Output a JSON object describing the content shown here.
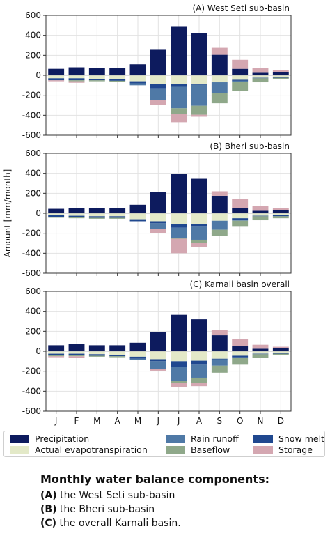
{
  "chart_data": [
    {
      "type": "bar",
      "title": "(A) West Seti sub-basin",
      "categories": [
        "J",
        "F",
        "M",
        "A",
        "M",
        "J",
        "J",
        "A",
        "S",
        "O",
        "N",
        "D"
      ],
      "ylim": [
        -600,
        600
      ],
      "yticks": [
        -600,
        -400,
        -200,
        0,
        200,
        400,
        600
      ],
      "grid": true,
      "series": [
        {
          "name": "Precipitation",
          "values": [
            65,
            80,
            70,
            70,
            110,
            255,
            485,
            420,
            205,
            65,
            25,
            30
          ]
        },
        {
          "name": "Actual evapotranspiration",
          "values": [
            -30,
            -30,
            -35,
            -40,
            -60,
            -85,
            -85,
            -85,
            -70,
            -45,
            -25,
            -20
          ]
        },
        {
          "name": "Rain runoff",
          "values": [
            0,
            0,
            0,
            0,
            -20,
            -120,
            -215,
            -210,
            -105,
            -10,
            0,
            0
          ]
        },
        {
          "name": "Snow melt",
          "values": [
            -20,
            -20,
            -15,
            -15,
            -20,
            -45,
            -30,
            -10,
            0,
            -10,
            -5,
            -5
          ]
        },
        {
          "name": "Baseflow",
          "values": [
            0,
            -10,
            -10,
            -10,
            0,
            0,
            -60,
            -90,
            -105,
            -90,
            -40,
            -15
          ]
        },
        {
          "name": "Storage",
          "values": [
            -10,
            -15,
            0,
            0,
            0,
            -45,
            -80,
            -20,
            70,
            90,
            45,
            20
          ]
        }
      ]
    },
    {
      "type": "bar",
      "title": "(B) Bheri sub-basin",
      "categories": [
        "J",
        "F",
        "M",
        "A",
        "M",
        "J",
        "J",
        "A",
        "S",
        "O",
        "N",
        "D"
      ],
      "ylim": [
        -600,
        600
      ],
      "yticks": [
        -600,
        -400,
        -200,
        0,
        200,
        400,
        600
      ],
      "grid": true,
      "series": [
        {
          "name": "Precipitation",
          "values": [
            45,
            55,
            50,
            50,
            85,
            210,
            395,
            345,
            175,
            55,
            25,
            30
          ]
        },
        {
          "name": "Actual evapotranspiration",
          "values": [
            -20,
            -25,
            -30,
            -30,
            -60,
            -80,
            -110,
            -110,
            -75,
            -50,
            -25,
            -20
          ]
        },
        {
          "name": "Rain runoff",
          "values": [
            0,
            0,
            0,
            0,
            0,
            -60,
            -100,
            -130,
            -90,
            -5,
            0,
            0
          ]
        },
        {
          "name": "Snow melt",
          "values": [
            -15,
            -15,
            -15,
            -15,
            -20,
            -20,
            -35,
            -25,
            0,
            -20,
            -5,
            -10
          ]
        },
        {
          "name": "Baseflow",
          "values": [
            -10,
            -10,
            -10,
            -10,
            0,
            0,
            -10,
            -30,
            -60,
            -60,
            -40,
            -20
          ]
        },
        {
          "name": "Storage",
          "values": [
            0,
            0,
            0,
            0,
            0,
            -40,
            -145,
            -45,
            45,
            85,
            50,
            20
          ]
        }
      ]
    },
    {
      "type": "bar",
      "title": "(C) Karnali basin overall",
      "categories": [
        "J",
        "F",
        "M",
        "A",
        "M",
        "J",
        "J",
        "A",
        "S",
        "O",
        "N",
        "D"
      ],
      "ylim": [
        -600,
        600
      ],
      "yticks": [
        -600,
        -400,
        -200,
        0,
        200,
        400,
        600
      ],
      "grid": true,
      "series": [
        {
          "name": "Precipitation",
          "values": [
            60,
            70,
            60,
            60,
            85,
            190,
            365,
            320,
            160,
            55,
            25,
            30
          ]
        },
        {
          "name": "Actual evapotranspiration",
          "values": [
            -25,
            -25,
            -30,
            -35,
            -55,
            -80,
            -100,
            -95,
            -75,
            -45,
            -25,
            -20
          ]
        },
        {
          "name": "Rain runoff",
          "values": [
            0,
            0,
            0,
            0,
            -10,
            -80,
            -140,
            -130,
            -65,
            -5,
            0,
            0
          ]
        },
        {
          "name": "Snow melt",
          "values": [
            -15,
            -15,
            -15,
            -15,
            -20,
            -20,
            -60,
            -40,
            -5,
            -15,
            -5,
            -5
          ]
        },
        {
          "name": "Baseflow",
          "values": [
            -10,
            -10,
            -10,
            -10,
            0,
            0,
            -20,
            -55,
            -70,
            -70,
            -35,
            -15
          ]
        },
        {
          "name": "Storage",
          "values": [
            -10,
            -15,
            0,
            0,
            0,
            -15,
            -40,
            -30,
            50,
            65,
            40,
            15
          ]
        }
      ]
    }
  ],
  "ylabel": "Amount [mm/month]",
  "colors": {
    "Precipitation": "#0d1b5e",
    "Actual evapotranspiration": "#e3e9c8",
    "Rain runoff": "#4f79a6",
    "Snow melt": "#20488f",
    "Baseflow": "#8fa88a",
    "Storage": "#d4a7b1"
  },
  "legend": [
    {
      "name": "Precipitation",
      "color": "#0d1b5e"
    },
    {
      "name": "Actual evapotranspiration",
      "color": "#e3e9c8"
    },
    {
      "name": "Rain runoff",
      "color": "#4f79a6"
    },
    {
      "name": "Baseflow",
      "color": "#8fa88a"
    },
    {
      "name": "Snow melt",
      "color": "#20488f"
    },
    {
      "name": "Storage",
      "color": "#d4a7b1"
    }
  ],
  "caption": {
    "title": "Monthly water balance components:",
    "lines": [
      {
        "label": "(A)",
        "text": " the West Seti sub-basin"
      },
      {
        "label": "(B)",
        "text": " the Bheri sub-basin"
      },
      {
        "label": "(C)",
        "text": " the overall Karnali basin."
      }
    ]
  }
}
